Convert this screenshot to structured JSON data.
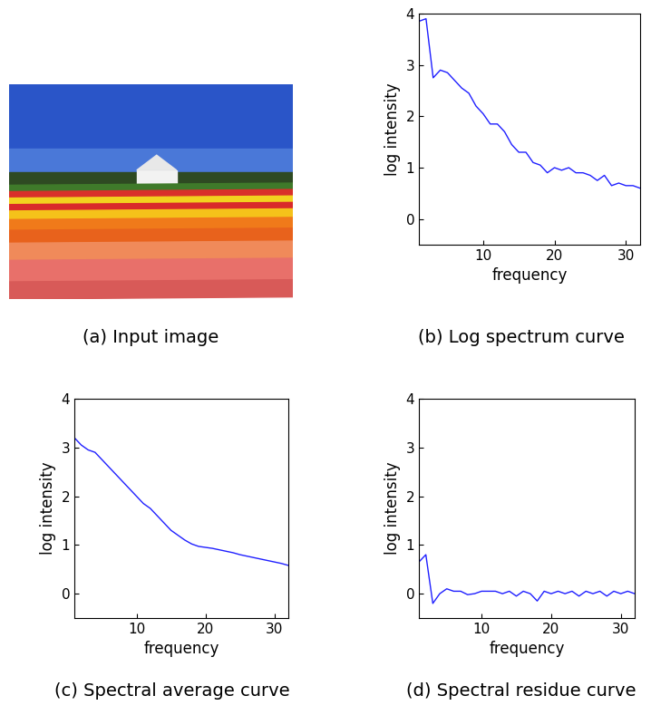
{
  "chart_data": [
    {
      "type": "image",
      "title": "(a) Input image"
    },
    {
      "type": "line",
      "title": "(b) Log spectrum curve",
      "x_label": "frequency",
      "y_label": "log intensity",
      "x": [
        1,
        2,
        3,
        4,
        5,
        6,
        7,
        8,
        9,
        10,
        11,
        12,
        13,
        14,
        15,
        16,
        17,
        18,
        19,
        20,
        21,
        22,
        23,
        24,
        25,
        26,
        27,
        28,
        29,
        30,
        31,
        32
      ],
      "values": [
        3.85,
        3.9,
        2.75,
        2.9,
        2.85,
        2.7,
        2.55,
        2.45,
        2.2,
        2.05,
        1.85,
        1.85,
        1.7,
        1.45,
        1.3,
        1.3,
        1.1,
        1.05,
        0.9,
        1.0,
        0.95,
        1.0,
        0.9,
        0.9,
        0.85,
        0.75,
        0.85,
        0.65,
        0.7,
        0.65,
        0.65,
        0.6
      ],
      "color": "#1f1fff",
      "xlim": [
        1,
        32
      ],
      "xticks": [
        10,
        20,
        30
      ],
      "ylim": [
        -0.5,
        4
      ],
      "yticks": [
        0,
        1,
        2,
        3,
        4
      ],
      "grid": false
    },
    {
      "type": "line",
      "title": "(c) Spectral average curve",
      "x_label": "frequency",
      "y_label": "log intensity",
      "x": [
        1,
        2,
        3,
        4,
        5,
        6,
        7,
        8,
        9,
        10,
        11,
        12,
        13,
        14,
        15,
        16,
        17,
        18,
        19,
        20,
        21,
        22,
        23,
        24,
        25,
        26,
        27,
        28,
        29,
        30,
        31,
        32
      ],
      "values": [
        3.2,
        3.05,
        2.95,
        2.9,
        2.75,
        2.6,
        2.45,
        2.3,
        2.15,
        2.0,
        1.85,
        1.75,
        1.6,
        1.45,
        1.3,
        1.2,
        1.1,
        1.02,
        0.97,
        0.95,
        0.93,
        0.9,
        0.87,
        0.84,
        0.8,
        0.77,
        0.74,
        0.71,
        0.68,
        0.65,
        0.62,
        0.58
      ],
      "color": "#1f1fff",
      "xlim": [
        1,
        32
      ],
      "xticks": [
        10,
        20,
        30
      ],
      "ylim": [
        -0.5,
        4
      ],
      "yticks": [
        0,
        1,
        2,
        3,
        4
      ],
      "grid": false
    },
    {
      "type": "line",
      "title": "(d) Spectral residue curve",
      "x_label": "frequency",
      "y_label": "log intensity",
      "x": [
        1,
        2,
        3,
        4,
        5,
        6,
        7,
        8,
        9,
        10,
        11,
        12,
        13,
        14,
        15,
        16,
        17,
        18,
        19,
        20,
        21,
        22,
        23,
        24,
        25,
        26,
        27,
        28,
        29,
        30,
        31,
        32
      ],
      "values": [
        0.65,
        0.8,
        -0.2,
        0.0,
        0.1,
        0.05,
        0.05,
        -0.02,
        0.0,
        0.05,
        0.05,
        0.05,
        0.0,
        0.05,
        -0.05,
        0.05,
        0.0,
        -0.15,
        0.05,
        0.0,
        0.05,
        0.0,
        0.05,
        -0.05,
        0.05,
        0.0,
        0.05,
        -0.05,
        0.05,
        0.0,
        0.05,
        0.0
      ],
      "color": "#1f1fff",
      "xlim": [
        1,
        32
      ],
      "xticks": [
        10,
        20,
        30
      ],
      "ylim": [
        -0.5,
        4
      ],
      "yticks": [
        0,
        1,
        2,
        3,
        4
      ],
      "grid": false
    }
  ]
}
